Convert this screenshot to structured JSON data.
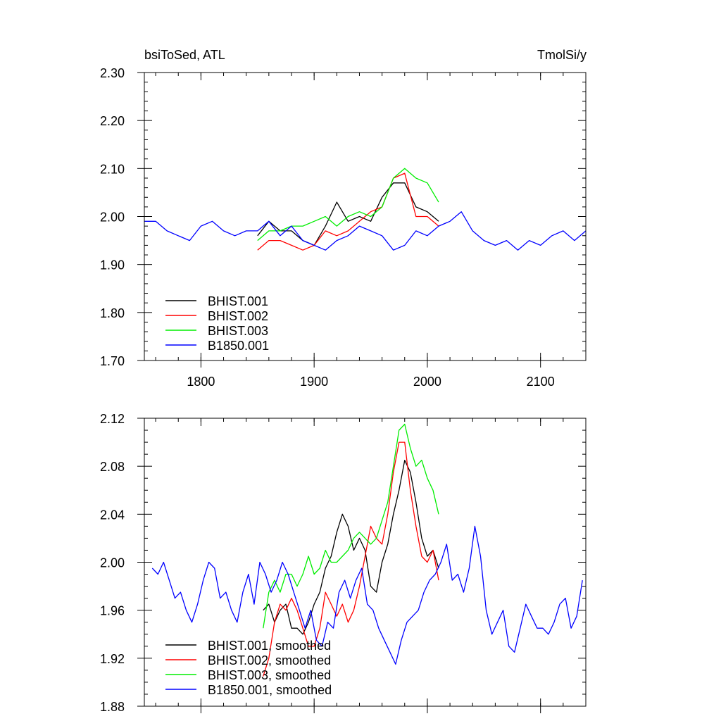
{
  "chart_data": [
    {
      "type": "line",
      "title": "bsiToSed, ATL",
      "units_label": "TmolSi/y",
      "xlim": [
        1750,
        2140
      ],
      "ylim": [
        1.7,
        2.3
      ],
      "x_ticks": [
        1800,
        1900,
        2000,
        2100
      ],
      "x_tick_labels": [
        "1800",
        "1900",
        "2000",
        "2100"
      ],
      "y_ticks": [
        1.7,
        1.8,
        1.9,
        2.0,
        2.1,
        2.2,
        2.3
      ],
      "y_tick_labels": [
        "1.70",
        "1.80",
        "1.90",
        "2.00",
        "2.10",
        "2.20",
        "2.30"
      ],
      "legend_position": "bottom-left",
      "grid": false,
      "series": [
        {
          "name": "BHIST.001",
          "color": "#000000",
          "x": [
            1850,
            1860,
            1870,
            1880,
            1890,
            1900,
            1910,
            1920,
            1930,
            1940,
            1950,
            1960,
            1970,
            1980,
            1990,
            2000,
            2010
          ],
          "values": [
            1.96,
            1.99,
            1.97,
            1.97,
            1.95,
            1.94,
            1.98,
            2.03,
            1.99,
            2.0,
            1.99,
            2.04,
            2.07,
            2.07,
            2.02,
            2.01,
            1.99
          ]
        },
        {
          "name": "BHIST.002",
          "color": "#ff0000",
          "x": [
            1850,
            1860,
            1870,
            1880,
            1890,
            1900,
            1910,
            1920,
            1930,
            1940,
            1950,
            1960,
            1970,
            1980,
            1990,
            2000,
            2010
          ],
          "values": [
            1.93,
            1.95,
            1.95,
            1.94,
            1.93,
            1.94,
            1.97,
            1.96,
            1.97,
            1.99,
            2.01,
            2.02,
            2.08,
            2.09,
            2.0,
            2.0,
            1.98
          ]
        },
        {
          "name": "BHIST.003",
          "color": "#00ee00",
          "x": [
            1850,
            1860,
            1870,
            1880,
            1890,
            1900,
            1910,
            1920,
            1930,
            1940,
            1950,
            1960,
            1970,
            1980,
            1990,
            2000,
            2010
          ],
          "values": [
            1.95,
            1.97,
            1.97,
            1.98,
            1.98,
            1.99,
            2.0,
            1.98,
            2.0,
            2.01,
            2.0,
            2.02,
            2.08,
            2.1,
            2.08,
            2.07,
            2.03
          ]
        },
        {
          "name": "B1850.001",
          "color": "#0000ff",
          "x": [
            1750,
            1760,
            1770,
            1780,
            1790,
            1800,
            1810,
            1820,
            1830,
            1840,
            1850,
            1860,
            1870,
            1880,
            1890,
            1900,
            1910,
            1920,
            1930,
            1940,
            1950,
            1960,
            1970,
            1980,
            1990,
            2000,
            2010,
            2020,
            2030,
            2040,
            2050,
            2060,
            2070,
            2080,
            2090,
            2100,
            2110,
            2120,
            2130,
            2140
          ],
          "values": [
            1.99,
            1.99,
            1.97,
            1.96,
            1.95,
            1.98,
            1.99,
            1.97,
            1.96,
            1.97,
            1.97,
            1.99,
            1.96,
            1.98,
            1.95,
            1.94,
            1.93,
            1.95,
            1.96,
            1.98,
            1.97,
            1.96,
            1.93,
            1.94,
            1.97,
            1.96,
            1.98,
            1.99,
            2.01,
            1.97,
            1.95,
            1.94,
            1.95,
            1.93,
            1.95,
            1.94,
            1.96,
            1.97,
            1.95,
            1.97
          ]
        }
      ]
    },
    {
      "type": "line",
      "xlim": [
        1750,
        2140
      ],
      "ylim": [
        1.88,
        2.12
      ],
      "x_ticks": [
        1800,
        1900,
        2000,
        2100
      ],
      "y_ticks": [
        1.88,
        1.92,
        1.96,
        2.0,
        2.04,
        2.08,
        2.12
      ],
      "y_tick_labels": [
        "1.88",
        "1.92",
        "1.96",
        "2.00",
        "2.04",
        "2.08",
        "2.12"
      ],
      "legend_position": "bottom-left",
      "grid": false,
      "series": [
        {
          "name": "BHIST.001, smoothed",
          "color": "#000000",
          "x": [
            1855,
            1860,
            1865,
            1870,
            1875,
            1880,
            1885,
            1890,
            1895,
            1900,
            1905,
            1910,
            1915,
            1920,
            1925,
            1930,
            1935,
            1940,
            1945,
            1950,
            1955,
            1960,
            1965,
            1970,
            1975,
            1980,
            1985,
            1990,
            1995,
            2000,
            2005,
            2010
          ],
          "values": [
            1.96,
            1.965,
            1.95,
            1.96,
            1.965,
            1.945,
            1.945,
            1.94,
            1.95,
            1.965,
            1.975,
            1.995,
            2.005,
            2.025,
            2.04,
            2.03,
            2.01,
            2.02,
            2.01,
            1.98,
            1.975,
            2.0,
            2.015,
            2.04,
            2.06,
            2.085,
            2.075,
            2.05,
            2.02,
            2.005,
            2.01,
            1.995
          ]
        },
        {
          "name": "BHIST.002, smoothed",
          "color": "#ff0000",
          "x": [
            1855,
            1860,
            1865,
            1870,
            1875,
            1880,
            1885,
            1890,
            1895,
            1900,
            1905,
            1910,
            1915,
            1920,
            1925,
            1930,
            1935,
            1940,
            1945,
            1950,
            1955,
            1960,
            1965,
            1970,
            1975,
            1980,
            1985,
            1990,
            1995,
            2000,
            2005,
            2010
          ],
          "values": [
            1.905,
            1.92,
            1.95,
            1.965,
            1.96,
            1.97,
            1.96,
            1.945,
            1.93,
            1.93,
            1.945,
            1.975,
            1.965,
            1.955,
            1.965,
            1.95,
            1.96,
            1.98,
            2.005,
            2.03,
            2.02,
            2.015,
            2.04,
            2.075,
            2.1,
            2.1,
            2.06,
            2.03,
            2.005,
            2.0,
            2.01,
            1.985
          ]
        },
        {
          "name": "BHIST.003, smoothed",
          "color": "#00ee00",
          "x": [
            1855,
            1860,
            1865,
            1870,
            1875,
            1880,
            1885,
            1890,
            1895,
            1900,
            1905,
            1910,
            1915,
            1920,
            1925,
            1930,
            1935,
            1940,
            1945,
            1950,
            1955,
            1960,
            1965,
            1970,
            1975,
            1980,
            1985,
            1990,
            1995,
            2000,
            2005,
            2010
          ],
          "values": [
            1.945,
            1.975,
            1.985,
            1.975,
            1.99,
            1.99,
            1.98,
            1.99,
            2.005,
            1.99,
            1.995,
            2.01,
            2.0,
            2.0,
            2.005,
            2.01,
            2.02,
            2.025,
            2.02,
            2.015,
            2.02,
            2.035,
            2.05,
            2.08,
            2.11,
            2.115,
            2.095,
            2.08,
            2.085,
            2.07,
            2.06,
            2.04
          ]
        },
        {
          "name": "B1850.001, smoothed",
          "color": "#0000ff",
          "x": [
            1757,
            1762,
            1767,
            1772,
            1777,
            1782,
            1787,
            1792,
            1797,
            1802,
            1807,
            1812,
            1817,
            1822,
            1827,
            1832,
            1837,
            1842,
            1847,
            1852,
            1857,
            1862,
            1867,
            1872,
            1877,
            1882,
            1887,
            1892,
            1897,
            1902,
            1907,
            1912,
            1917,
            1922,
            1927,
            1932,
            1937,
            1942,
            1947,
            1952,
            1957,
            1962,
            1967,
            1972,
            1977,
            1982,
            1987,
            1992,
            1997,
            2002,
            2007,
            2012,
            2017,
            2022,
            2027,
            2032,
            2037,
            2042,
            2047,
            2052,
            2057,
            2062,
            2067,
            2072,
            2077,
            2082,
            2087,
            2092,
            2097,
            2102,
            2107,
            2112,
            2117,
            2122,
            2127,
            2132,
            2137
          ],
          "values": [
            1.995,
            1.99,
            2.0,
            1.985,
            1.97,
            1.975,
            1.96,
            1.95,
            1.965,
            1.985,
            2.0,
            1.995,
            1.97,
            1.975,
            1.96,
            1.95,
            1.975,
            1.99,
            1.965,
            2.0,
            1.99,
            1.975,
            1.985,
            2.0,
            1.99,
            1.975,
            1.96,
            1.945,
            1.96,
            1.935,
            1.93,
            1.95,
            1.945,
            1.975,
            1.985,
            1.97,
            1.985,
            1.995,
            1.965,
            1.96,
            1.945,
            1.935,
            1.925,
            1.915,
            1.935,
            1.95,
            1.955,
            1.96,
            1.975,
            1.985,
            1.99,
            2.0,
            2.015,
            1.985,
            1.99,
            1.975,
            1.995,
            2.03,
            2.005,
            1.96,
            1.94,
            1.95,
            1.96,
            1.93,
            1.925,
            1.945,
            1.965,
            1.955,
            1.945,
            1.945,
            1.94,
            1.95,
            1.965,
            1.97,
            1.945,
            1.955,
            1.985
          ]
        }
      ]
    }
  ]
}
